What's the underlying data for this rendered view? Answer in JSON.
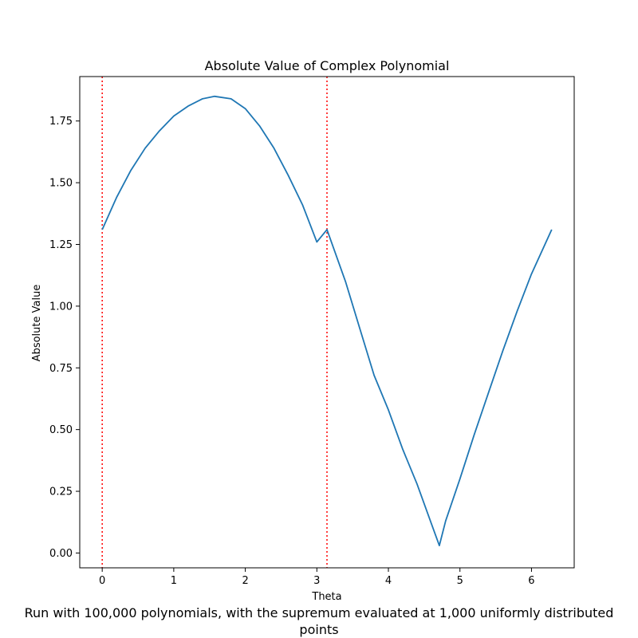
{
  "chart_data": {
    "type": "line",
    "title": "Absolute Value of Complex Polynomial",
    "xlabel": "Theta",
    "ylabel": "Absolute Value",
    "xlim": [
      -0.314,
      6.597
    ],
    "ylim": [
      -0.06,
      1.93
    ],
    "xticks": [
      0,
      1,
      2,
      3,
      4,
      5,
      6
    ],
    "xtick_labels": [
      "0",
      "1",
      "2",
      "3",
      "4",
      "5",
      "6"
    ],
    "yticks": [
      0.0,
      0.25,
      0.5,
      0.75,
      1.0,
      1.25,
      1.5,
      1.75
    ],
    "ytick_labels": [
      "0.00",
      "0.25",
      "0.50",
      "0.75",
      "1.00",
      "1.25",
      "1.50",
      "1.75"
    ],
    "grid": false,
    "series": [
      {
        "color": "#1f77b4",
        "x": [
          0.0,
          0.2,
          0.4,
          0.6,
          0.8,
          1.0,
          1.2,
          1.4,
          1.571,
          1.8,
          2.0,
          2.2,
          2.4,
          2.6,
          2.8,
          3.0,
          3.142,
          3.4,
          3.6,
          3.8,
          4.0,
          4.2,
          4.4,
          4.6,
          4.712,
          4.8,
          5.0,
          5.2,
          5.4,
          5.6,
          5.8,
          6.0,
          6.283
        ],
        "values": [
          1.31,
          1.44,
          1.55,
          1.64,
          1.71,
          1.77,
          1.81,
          1.84,
          1.85,
          1.84,
          1.8,
          1.73,
          1.64,
          1.53,
          1.41,
          1.26,
          1.31,
          1.1,
          0.91,
          0.72,
          0.58,
          0.42,
          0.28,
          0.12,
          0.03,
          0.13,
          0.3,
          0.48,
          0.65,
          0.82,
          0.98,
          1.13,
          1.31
        ]
      }
    ],
    "vlines": [
      {
        "x": 0.0,
        "color": "#ff0000",
        "style": "dotted"
      },
      {
        "x": 3.1416,
        "color": "#ff0000",
        "style": "dotted"
      }
    ]
  },
  "caption": {
    "line1": "Run with 100,000 polynomials, with the supremum evaluated at 1,000 uniformly distributed",
    "line2": "points"
  }
}
